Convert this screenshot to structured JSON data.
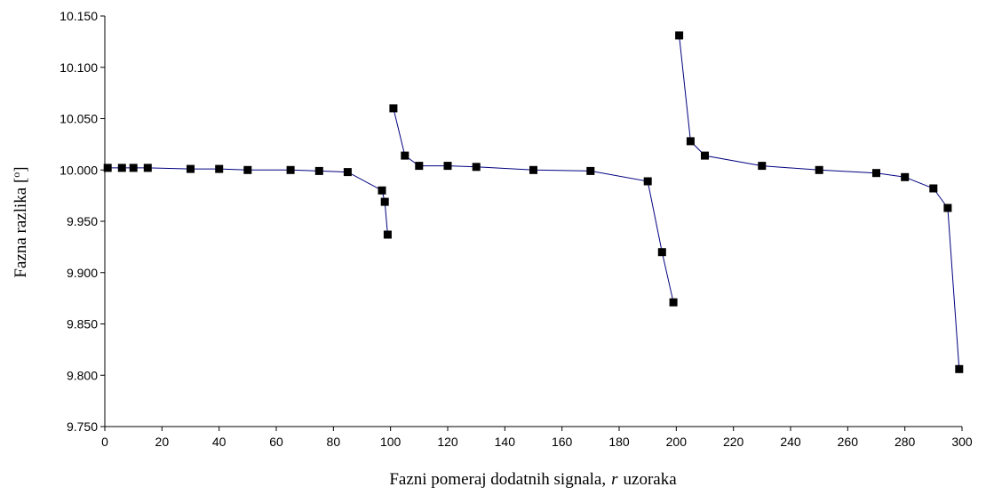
{
  "chart_data": {
    "type": "line",
    "xlabel": {
      "main": "Fazni pomeraj dodatnih signala,",
      "var": "r",
      "unit": "uzoraka"
    },
    "ylabel": {
      "main": "Fazna razlika [",
      "sup": "o",
      "end": "]"
    },
    "xlim": [
      0,
      300
    ],
    "ylim": [
      9.75,
      10.15
    ],
    "x_ticks": [
      "0",
      "20",
      "40",
      "60",
      "80",
      "100",
      "120",
      "140",
      "160",
      "180",
      "200",
      "220",
      "240",
      "260",
      "280",
      "300"
    ],
    "y_ticks": [
      "9.750",
      "9.800",
      "9.850",
      "9.900",
      "9.950",
      "10.000",
      "10.050",
      "10.100",
      "10.150"
    ],
    "grid": false,
    "legend": "none",
    "colors": {
      "line": "#000080",
      "marker": "#000000"
    },
    "series": [
      {
        "segment": 1,
        "points": [
          [
            1,
            10.002
          ],
          [
            6,
            10.002
          ],
          [
            10,
            10.002
          ],
          [
            15,
            10.002
          ],
          [
            30,
            10.001
          ],
          [
            40,
            10.001
          ],
          [
            50,
            10.0
          ],
          [
            65,
            10.0
          ],
          [
            75,
            9.999
          ],
          [
            85,
            9.998
          ],
          [
            97,
            9.98
          ],
          [
            98,
            9.969
          ],
          [
            99,
            9.937
          ]
        ]
      },
      {
        "segment": 2,
        "points": [
          [
            101,
            10.06
          ],
          [
            105,
            10.014
          ],
          [
            110,
            10.004
          ],
          [
            120,
            10.004
          ],
          [
            130,
            10.003
          ],
          [
            150,
            10.0
          ],
          [
            170,
            9.999
          ],
          [
            190,
            9.989
          ],
          [
            195,
            9.92
          ],
          [
            199,
            9.871
          ]
        ]
      },
      {
        "segment": 3,
        "points": [
          [
            201,
            10.131
          ],
          [
            205,
            10.028
          ],
          [
            210,
            10.014
          ],
          [
            230,
            10.004
          ],
          [
            250,
            10.0
          ],
          [
            270,
            9.997
          ],
          [
            280,
            9.993
          ],
          [
            290,
            9.982
          ],
          [
            295,
            9.963
          ],
          [
            299,
            9.806
          ]
        ]
      }
    ]
  }
}
